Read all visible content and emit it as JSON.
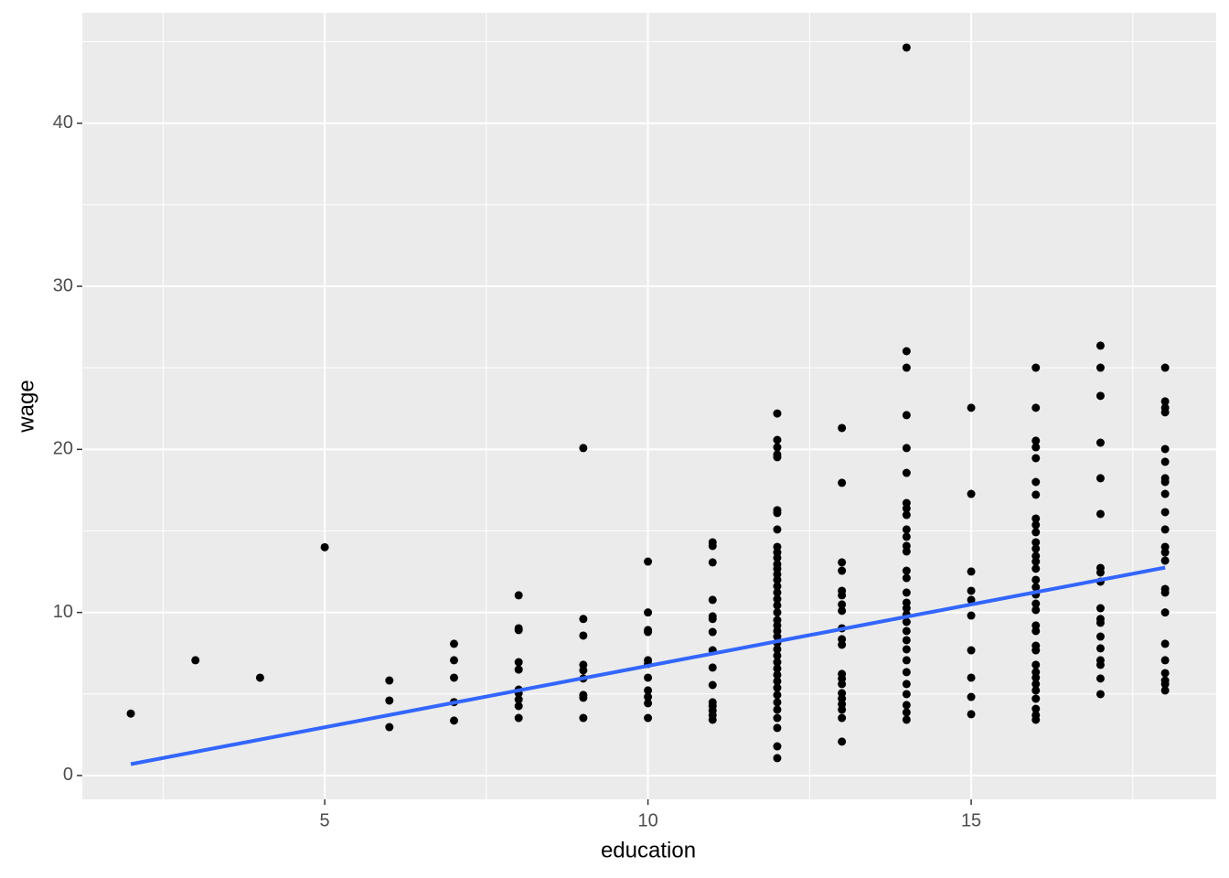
{
  "chart_data": {
    "type": "scatter",
    "x_label": "education",
    "y_label": "wage",
    "xlim": [
      1.25,
      18.79
    ],
    "ylim": [
      -1.46,
      46.77
    ],
    "xticks": [
      5,
      10,
      15
    ],
    "yticks": [
      0,
      10,
      20,
      30,
      40
    ],
    "xminor": [
      2.5,
      7.5,
      12.5,
      17.5
    ],
    "yminor": [
      5,
      15,
      25,
      35,
      45
    ],
    "grid": true,
    "color": "#000000",
    "x": [
      2,
      3,
      4,
      5,
      6,
      6,
      6,
      7,
      7,
      7,
      7,
      7,
      8,
      8,
      8,
      8,
      8,
      8,
      8,
      8,
      8,
      8,
      9,
      9,
      9,
      9,
      9,
      9,
      9,
      9,
      9,
      10,
      10,
      10,
      10,
      10,
      10,
      10,
      10,
      10,
      10,
      10,
      11,
      11,
      11,
      11,
      11,
      11,
      11,
      11,
      11,
      11,
      11,
      11,
      11,
      11,
      11,
      12,
      12,
      12,
      12,
      12,
      12,
      12,
      12,
      12,
      12,
      12,
      12,
      12,
      12,
      12,
      12,
      12,
      12,
      12,
      12,
      12,
      12,
      12,
      12,
      12,
      12,
      12,
      12,
      12,
      12,
      12,
      12,
      12,
      12,
      12,
      12,
      12,
      12,
      12,
      13,
      13,
      13,
      13,
      13,
      13,
      13,
      13,
      13,
      13,
      13,
      13,
      13,
      13,
      13,
      13,
      13,
      13,
      13,
      13,
      14,
      14,
      14,
      14,
      14,
      14,
      14,
      14,
      14,
      14,
      14,
      14,
      14,
      14,
      14,
      14,
      14,
      14,
      14,
      14,
      14,
      14,
      14,
      14,
      14,
      14,
      14,
      14,
      14,
      14,
      15,
      15,
      15,
      15,
      15,
      15,
      15,
      15,
      15,
      15,
      16,
      16,
      16,
      16,
      16,
      16,
      16,
      16,
      16,
      16,
      16,
      16,
      16,
      16,
      16,
      16,
      16,
      16,
      16,
      16,
      16,
      16,
      16,
      16,
      16,
      16,
      16,
      16,
      16,
      16,
      16,
      16,
      16,
      17,
      17,
      17,
      17,
      17,
      17,
      17,
      17,
      17,
      17,
      17,
      17,
      17,
      17,
      17,
      17,
      17,
      17,
      18,
      18,
      18,
      18,
      18,
      18,
      18,
      18,
      18,
      18,
      18,
      18,
      18,
      18,
      18,
      18,
      18,
      18,
      18,
      18,
      18,
      18,
      18
    ],
    "values": [
      3.8,
      7.07,
      6.0,
      14.0,
      5.83,
      4.6,
      2.97,
      8.08,
      7.07,
      6.0,
      4.5,
      3.37,
      11.05,
      9.03,
      8.92,
      6.95,
      6.5,
      5.27,
      5.05,
      4.66,
      4.26,
      3.53,
      20.08,
      9.6,
      8.58,
      6.79,
      6.45,
      5.95,
      4.94,
      4.77,
      3.53,
      13.12,
      10.0,
      8.92,
      8.8,
      7.07,
      6.84,
      6.0,
      5.22,
      4.82,
      4.43,
      3.53,
      14.3,
      14.08,
      13.07,
      10.77,
      9.76,
      9.6,
      8.8,
      7.68,
      6.62,
      5.55,
      4.49,
      4.26,
      3.98,
      3.7,
      3.42,
      22.2,
      20.58,
      20.13,
      19.69,
      19.52,
      16.27,
      16.1,
      15.09,
      14.02,
      13.68,
      13.35,
      12.96,
      12.68,
      12.34,
      12.0,
      11.61,
      11.22,
      10.82,
      10.43,
      10.0,
      9.53,
      9.2,
      8.86,
      8.52,
      8.13,
      7.74,
      7.35,
      6.95,
      6.56,
      6.17,
      5.78,
      5.38,
      4.94,
      4.49,
      4.04,
      3.53,
      2.92,
      1.79,
      1.07,
      21.31,
      17.95,
      13.07,
      12.56,
      11.33,
      11.05,
      10.49,
      10.1,
      9.03,
      8.36,
      8.02,
      6.23,
      5.95,
      5.61,
      5.05,
      4.71,
      4.37,
      4.04,
      3.53,
      2.08,
      44.64,
      26.02,
      25.01,
      22.1,
      20.08,
      18.56,
      16.71,
      16.38,
      15.98,
      15.09,
      14.64,
      14.08,
      13.74,
      12.56,
      12.11,
      11.22,
      10.6,
      10.26,
      9.87,
      9.42,
      8.86,
      8.3,
      7.74,
      7.07,
      6.34,
      5.61,
      4.99,
      4.32,
      3.87,
      3.42,
      22.55,
      17.27,
      12.51,
      11.33,
      10.77,
      9.81,
      7.68,
      6.0,
      4.82,
      3.76,
      25.01,
      22.55,
      20.53,
      20.13,
      19.46,
      18.0,
      17.22,
      15.76,
      15.37,
      14.92,
      14.3,
      13.91,
      13.46,
      13.12,
      12.68,
      12.0,
      11.55,
      11.1,
      10.54,
      10.15,
      9.2,
      8.86,
      7.96,
      7.68,
      6.79,
      6.34,
      6.0,
      5.61,
      5.22,
      4.71,
      4.09,
      3.7,
      3.42,
      26.36,
      25.01,
      23.28,
      20.41,
      18.23,
      16.04,
      12.73,
      12.45,
      11.89,
      10.26,
      9.6,
      9.37,
      8.52,
      7.8,
      7.07,
      6.79,
      5.95,
      4.99,
      25.01,
      22.94,
      22.55,
      22.27,
      20.02,
      19.24,
      18.23,
      18.0,
      17.27,
      16.15,
      15.09,
      14.02,
      13.68,
      13.18,
      11.44,
      11.22,
      10.0,
      8.08,
      7.07,
      6.28,
      5.83,
      5.61,
      5.22
    ],
    "trend_line": {
      "x": [
        2,
        18
      ],
      "values": [
        0.7,
        12.75
      ],
      "color": "#3366ff"
    }
  }
}
